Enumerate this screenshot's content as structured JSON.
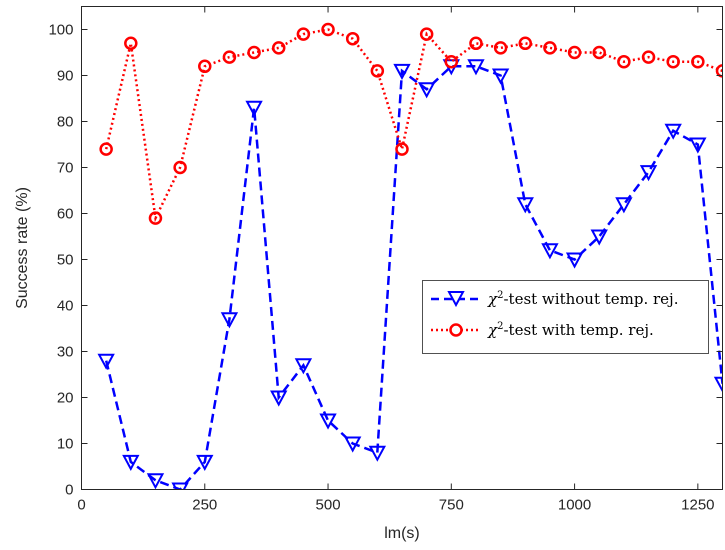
{
  "chart_data": {
    "type": "line",
    "xlabel": "lm(s)",
    "ylabel": "Success rate (%)",
    "xlim": [
      0,
      1300
    ],
    "ylim": [
      0,
      105
    ],
    "xticks": [
      0,
      250,
      500,
      750,
      1000,
      1250
    ],
    "yticks": [
      0,
      10,
      20,
      30,
      40,
      50,
      60,
      70,
      80,
      90,
      100
    ],
    "grid": false,
    "legend_position": "right",
    "series": [
      {
        "name": "χ²-test without temp. rej.",
        "legend_base": "χ",
        "legend_sup": "2",
        "legend_rest": "-test without temp. rej.",
        "color": "#0000ff",
        "marker": "triangle-down",
        "line_style": "dashed",
        "x": [
          50,
          100,
          150,
          200,
          250,
          300,
          350,
          400,
          450,
          500,
          550,
          600,
          650,
          700,
          750,
          800,
          850,
          900,
          950,
          1000,
          1050,
          1100,
          1150,
          1200,
          1250,
          1300
        ],
        "y": [
          28,
          6,
          2,
          0,
          6,
          37,
          83,
          20,
          27,
          15,
          10,
          8,
          91,
          87,
          92,
          92,
          90,
          62,
          52,
          50,
          55,
          62,
          69,
          78,
          75,
          23
        ]
      },
      {
        "name": "χ²-test with temp. rej.",
        "legend_base": "χ",
        "legend_sup": "2",
        "legend_rest": "-test with temp. rej.",
        "color": "#ff0000",
        "marker": "circle",
        "line_style": "dotted",
        "x": [
          50,
          100,
          150,
          200,
          250,
          300,
          350,
          400,
          450,
          500,
          550,
          600,
          650,
          700,
          750,
          800,
          850,
          900,
          950,
          1000,
          1050,
          1100,
          1150,
          1200,
          1250,
          1300
        ],
        "y": [
          74,
          97,
          59,
          70,
          92,
          94,
          95,
          96,
          99,
          100,
          98,
          91,
          74,
          99,
          93,
          97,
          96,
          97,
          96,
          95,
          95,
          93,
          94,
          93,
          93,
          91
        ]
      }
    ]
  }
}
